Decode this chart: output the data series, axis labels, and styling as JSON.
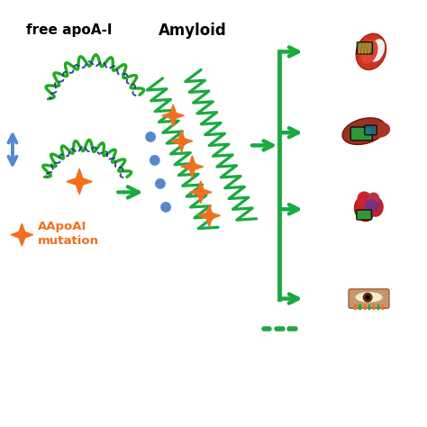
{
  "bg_color": "#ffffff",
  "title_free": "free apoA-I",
  "title_amyloid": "Amyloid",
  "label_mutation": "AApoAI\nmutation",
  "green": "#1aaa40",
  "orange": "#f07020",
  "blue": "#5588cc",
  "dark_blue": "#1a3a8b",
  "figsize": [
    4.74,
    4.74
  ],
  "dpi": 100
}
